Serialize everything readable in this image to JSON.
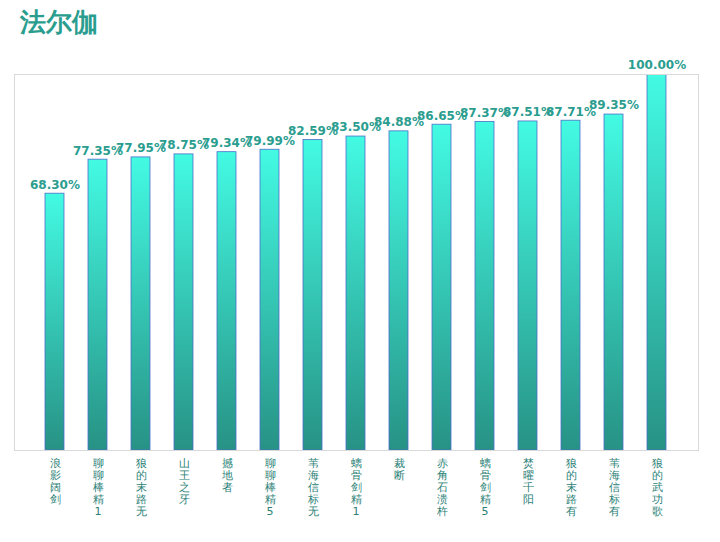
{
  "chart_data": {
    "type": "bar",
    "title": "法尔伽",
    "categories": [
      "浪影阔剑",
      "聊聊棒精1",
      "狼的末路无",
      "山王之牙",
      "撼地者",
      "聊聊棒精5",
      "苇海信标无",
      "螭骨剑精1",
      "裁断",
      "赤角石溃杵",
      "螭骨剑精5",
      "焚曜千阳",
      "狼的末路有",
      "苇海信标有",
      "狼的武功歌"
    ],
    "values": [
      68.3,
      77.35,
      77.95,
      78.75,
      79.34,
      79.99,
      82.59,
      83.5,
      84.88,
      86.65,
      87.37,
      87.51,
      87.71,
      89.35,
      100.0
    ],
    "value_labels": [
      "68.30%",
      "77.35%",
      "77.95%",
      "78.75%",
      "79.34%",
      "79.99%",
      "82.59%",
      "83.50%",
      "84.88%",
      "86.65%",
      "87.37%",
      "87.51%",
      "87.71%",
      "89.35%",
      "100.00%"
    ],
    "color": "#2a9d8f",
    "ylim": [
      0,
      100
    ],
    "yticks": [],
    "grid": false,
    "data_labels": true,
    "tick_labels": "x"
  }
}
